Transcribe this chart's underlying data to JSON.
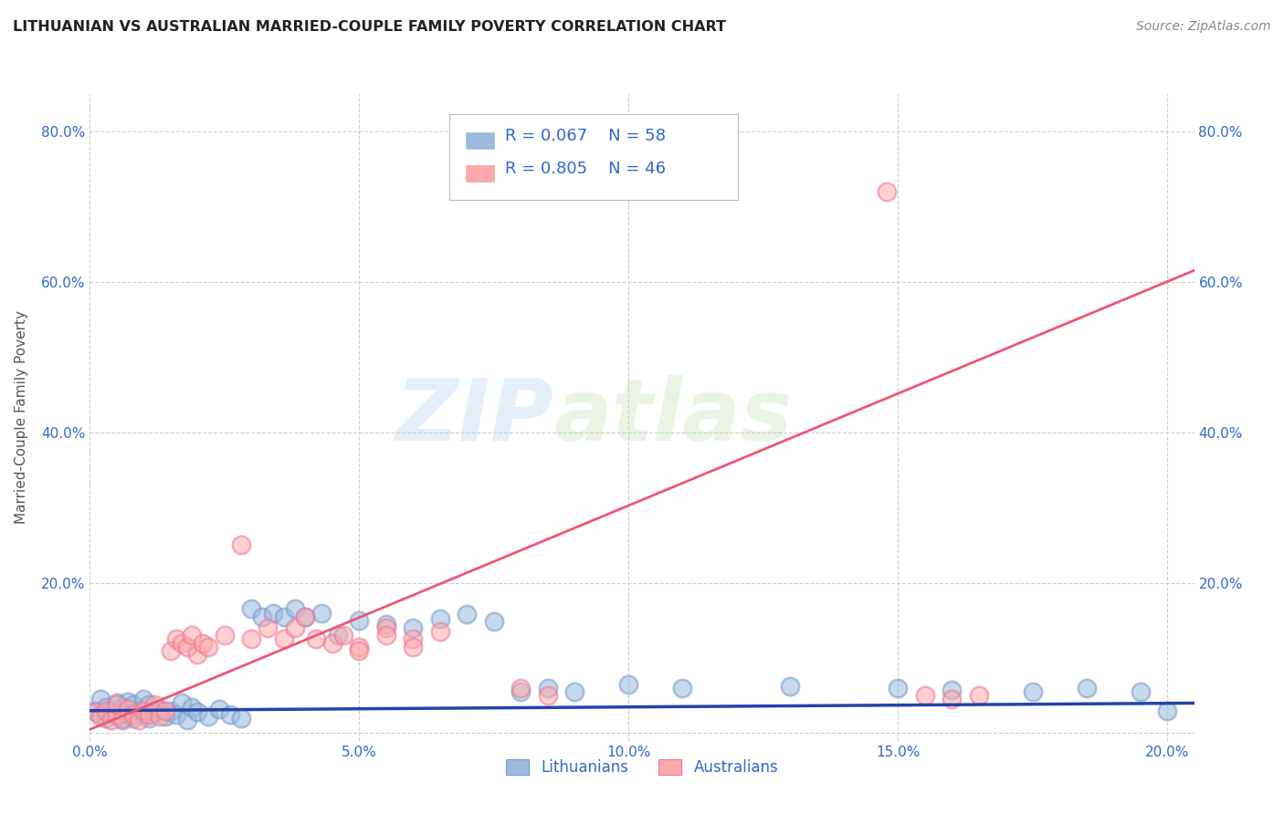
{
  "title": "LITHUANIAN VS AUSTRALIAN MARRIED-COUPLE FAMILY POVERTY CORRELATION CHART",
  "source": "Source: ZipAtlas.com",
  "ylabel": "Married-Couple Family Poverty",
  "xlim": [
    0.0,
    0.205
  ],
  "ylim": [
    -0.01,
    0.85
  ],
  "xticks": [
    0.0,
    0.05,
    0.1,
    0.15,
    0.2
  ],
  "yticks": [
    0.0,
    0.2,
    0.4,
    0.6,
    0.8
  ],
  "color_blue": "#99BBDD",
  "color_blue_edge": "#7799CC",
  "color_pink": "#FFAAAA",
  "color_pink_edge": "#EE7799",
  "color_dark_blue": "#2244AA",
  "color_trend_pink": "#EE5577",
  "color_text_blue": "#3366CC",
  "background_color": "#FFFFFF",
  "grid_color": "#CCCCCC",
  "watermark1": "ZIP",
  "watermark2": "atlas",
  "lith_x": [
    0.001,
    0.002,
    0.002,
    0.003,
    0.003,
    0.004,
    0.005,
    0.005,
    0.006,
    0.006,
    0.007,
    0.007,
    0.008,
    0.008,
    0.009,
    0.01,
    0.01,
    0.011,
    0.011,
    0.012,
    0.013,
    0.014,
    0.015,
    0.016,
    0.017,
    0.018,
    0.019,
    0.02,
    0.022,
    0.024,
    0.026,
    0.028,
    0.03,
    0.032,
    0.034,
    0.036,
    0.038,
    0.04,
    0.043,
    0.046,
    0.05,
    0.055,
    0.06,
    0.065,
    0.07,
    0.075,
    0.08,
    0.085,
    0.09,
    0.1,
    0.11,
    0.13,
    0.15,
    0.16,
    0.175,
    0.185,
    0.195,
    0.2
  ],
  "lith_y": [
    0.03,
    0.025,
    0.045,
    0.02,
    0.035,
    0.028,
    0.022,
    0.04,
    0.018,
    0.035,
    0.025,
    0.042,
    0.02,
    0.038,
    0.03,
    0.025,
    0.045,
    0.02,
    0.038,
    0.028,
    0.032,
    0.022,
    0.03,
    0.025,
    0.04,
    0.018,
    0.035,
    0.028,
    0.022,
    0.032,
    0.025,
    0.02,
    0.165,
    0.155,
    0.16,
    0.155,
    0.165,
    0.155,
    0.16,
    0.13,
    0.15,
    0.145,
    0.14,
    0.152,
    0.158,
    0.148,
    0.055,
    0.06,
    0.055,
    0.065,
    0.06,
    0.062,
    0.06,
    0.058,
    0.055,
    0.06,
    0.055,
    0.03
  ],
  "aust_x": [
    0.001,
    0.002,
    0.003,
    0.004,
    0.005,
    0.005,
    0.006,
    0.007,
    0.008,
    0.009,
    0.01,
    0.011,
    0.012,
    0.013,
    0.014,
    0.015,
    0.016,
    0.017,
    0.018,
    0.019,
    0.02,
    0.021,
    0.022,
    0.025,
    0.028,
    0.03,
    0.033,
    0.036,
    0.038,
    0.04,
    0.042,
    0.045,
    0.047,
    0.05,
    0.055,
    0.06,
    0.065,
    0.05,
    0.055,
    0.06,
    0.08,
    0.085,
    0.148,
    0.155,
    0.16,
    0.165
  ],
  "aust_y": [
    0.028,
    0.022,
    0.03,
    0.018,
    0.025,
    0.038,
    0.02,
    0.032,
    0.025,
    0.018,
    0.03,
    0.025,
    0.038,
    0.022,
    0.03,
    0.11,
    0.125,
    0.12,
    0.115,
    0.13,
    0.105,
    0.12,
    0.115,
    0.13,
    0.25,
    0.125,
    0.14,
    0.125,
    0.14,
    0.155,
    0.125,
    0.12,
    0.13,
    0.115,
    0.14,
    0.125,
    0.135,
    0.11,
    0.13,
    0.115,
    0.06,
    0.05,
    0.72,
    0.05,
    0.045,
    0.05
  ],
  "lith_trend_x": [
    0.0,
    0.205
  ],
  "lith_trend_y": [
    0.03,
    0.04
  ],
  "aust_trend_x": [
    0.0,
    0.205
  ],
  "aust_trend_y": [
    0.005,
    0.615
  ]
}
